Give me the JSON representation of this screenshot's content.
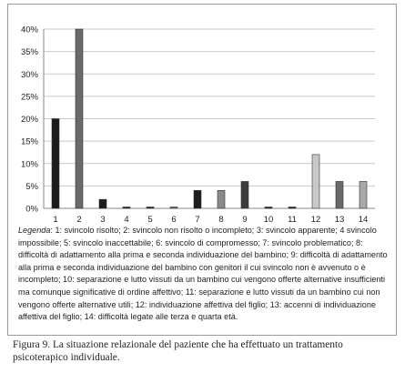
{
  "chart_data": {
    "type": "bar",
    "categories": [
      "1",
      "2",
      "3",
      "4",
      "5",
      "6",
      "7",
      "8",
      "9",
      "10",
      "11",
      "12",
      "13",
      "14"
    ],
    "values": [
      20,
      40,
      2,
      0,
      0,
      0,
      4,
      4,
      6,
      0,
      0,
      12,
      6,
      6
    ],
    "bar_colors": [
      "#1c1c1c",
      "#6a6a6a",
      "#1c1c1c",
      "#1c1c1c",
      "#1c1c1c",
      "#6a6a6a",
      "#1c1c1c",
      "#8a8a8a",
      "#3c3c3c",
      "#1c1c1c",
      "#1c1c1c",
      "#c8c8c8",
      "#6a6a6a",
      "#a8a8a8"
    ],
    "yticks": [
      "0%",
      "5%",
      "10%",
      "15%",
      "20%",
      "25%",
      "30%",
      "35%",
      "40%"
    ],
    "ylim": [
      0,
      40
    ],
    "grid": true,
    "title": "",
    "xlabel": "",
    "ylabel": ""
  },
  "legend": {
    "lead": "Legenda",
    "text": ": 1: svincolo risolto; 2: svincolo non risolto o incompleto; 3: svincolo apparente; 4 svincolo impossibile; 5: svincolo inaccettabile; 6: svincolo di compromesso; 7: svincolo problematico; 8: difficoltà di adattamento alla prima e seconda individuazione del bambino; 9: difficoltà di adattamento alla prima e seconda individuazione del bambino con genitori il cui svincolo non è avvenuto o è incompleto; 10: separazione e lutto vissuti da un bambino cui vengono offerte alternative insufficienti ma comunque significative di ordine affettivo; 11: separazione e lutto vissuti da un bambino cui non vengono offerte alternative utili; 12: individuazione affettiva del figlio; 13: accenni di individuazione affettiva del figlio; 14: difficoltà legate alle terza e quarta età."
  },
  "caption": "Figura 9. La situazione relazionale del paziente che ha effettuato un trattamento psicoterapico individuale."
}
